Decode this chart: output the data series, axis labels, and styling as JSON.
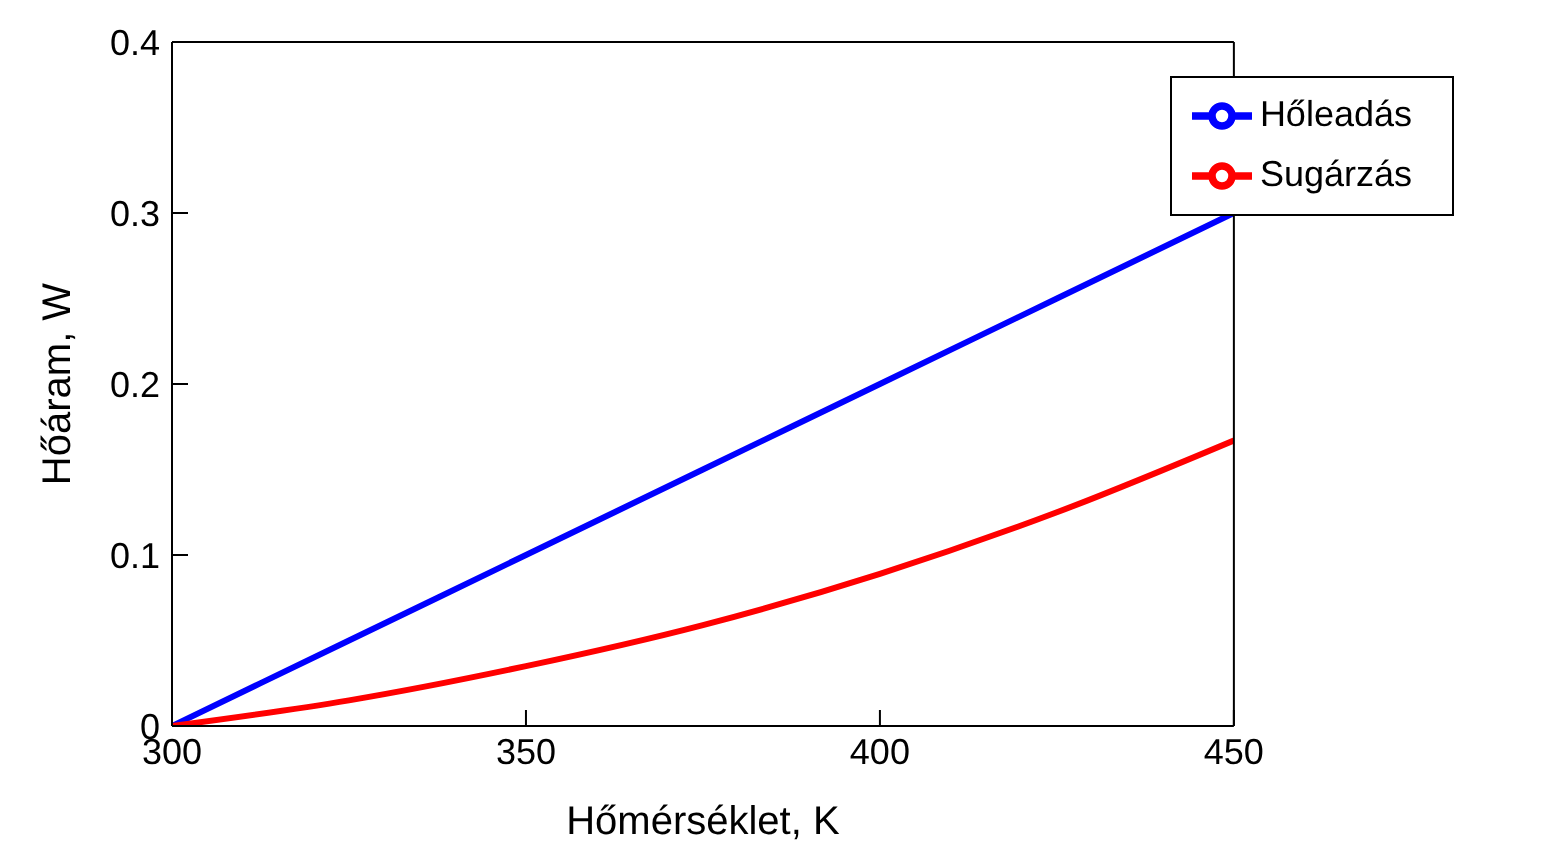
{
  "chart_data": {
    "type": "line",
    "xlabel": "Hőmérséklet, K",
    "ylabel": "Hőáram, W",
    "x": [
      300,
      325,
      350,
      375,
      400,
      425,
      450
    ],
    "series": [
      {
        "name": "Hőleadás",
        "color": "#0000ff",
        "values": [
          0,
          0.05,
          0.1,
          0.15,
          0.2,
          0.25,
          0.3
        ]
      },
      {
        "name": "Sugárzás",
        "color": "#ff0000",
        "values": [
          0,
          0.015,
          0.035,
          0.059,
          0.089,
          0.125,
          0.167
        ]
      }
    ],
    "xlim": [
      300,
      450
    ],
    "xticks": [
      300,
      350,
      400,
      450
    ],
    "ylim": [
      0,
      0.4
    ],
    "yticks": [
      0,
      0.1,
      0.2,
      0.3,
      0.4
    ],
    "grid": false,
    "legend": "top right",
    "marker": "none",
    "line_style": "solid"
  }
}
